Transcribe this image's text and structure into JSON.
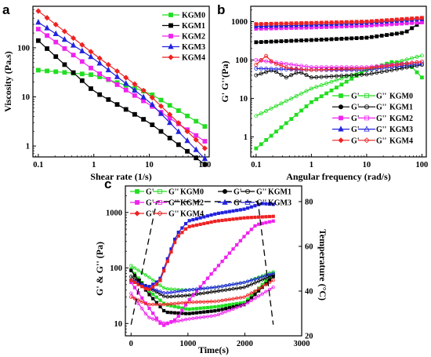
{
  "chart_data": [
    {
      "panel": "a",
      "type": "line",
      "xlabel": "Shear rate (1/s)",
      "ylabel": "Viscosity (Pa.s)",
      "xscale": "log",
      "yscale": "log",
      "xlim": [
        0.08,
        120
      ],
      "ylim": [
        0.6,
        700
      ],
      "xticks": [
        0.1,
        1,
        10,
        100
      ],
      "xtick_labels": [
        "0.1",
        "1",
        "10",
        "100"
      ],
      "yticks": [
        1,
        10,
        100
      ],
      "ytick_labels": [
        "1",
        "10",
        "100"
      ],
      "legend_position": "top-right",
      "series": [
        {
          "name": "KGM0",
          "color": "#22dd22",
          "marker": "square",
          "x": [
            0.1,
            1,
            10,
            100
          ],
          "y": [
            35,
            28,
            12,
            2.5
          ]
        },
        {
          "name": "KGM1",
          "color": "#000000",
          "marker": "square",
          "x": [
            0.1,
            1,
            10,
            100
          ],
          "y": [
            140,
            13,
            3,
            0.42
          ]
        },
        {
          "name": "KGM2",
          "color": "#ee22ee",
          "marker": "square",
          "x": [
            0.1,
            1,
            10,
            100
          ],
          "y": [
            240,
            35,
            7,
            1.25
          ]
        },
        {
          "name": "KGM3",
          "color": "#2222dd",
          "marker": "triangle",
          "x": [
            0.1,
            1,
            10,
            100
          ],
          "y": [
            330,
            60,
            8,
            0.55
          ]
        },
        {
          "name": "KGM4",
          "color": "#ee2222",
          "marker": "diamond",
          "x": [
            0.1,
            1,
            10,
            100
          ],
          "y": [
            560,
            75,
            11,
            0.9
          ]
        }
      ]
    },
    {
      "panel": "b",
      "type": "line",
      "xlabel": "Angular frequency (rad/s)",
      "ylabel": "G' G''(Pa)",
      "xscale": "log",
      "yscale": "log",
      "xlim": [
        0.08,
        120
      ],
      "ylim": [
        0.3,
        2500
      ],
      "xticks": [
        0.1,
        1,
        10,
        100
      ],
      "xtick_labels": [
        "0.1",
        "1",
        "10",
        "100"
      ],
      "yticks": [
        1,
        10,
        100,
        1000
      ],
      "ytick_labels": [
        "1",
        "10",
        "100",
        "1000"
      ],
      "legend_position": "bottom-right",
      "legend": [
        {
          "gp": "G'",
          "gpp": "G''",
          "sample": "KGM0"
        },
        {
          "gp": "G'",
          "gpp": "G''",
          "sample": "KGM1"
        },
        {
          "gp": "G'",
          "gpp": "G''",
          "sample": "KGM2"
        },
        {
          "gp": "G'",
          "gpp": "G''",
          "sample": "KGM3"
        },
        {
          "gp": "G'",
          "gpp": "G''",
          "sample": "KGM4"
        }
      ],
      "series": [
        {
          "name": "G' KGM0",
          "color": "#22dd22",
          "filled": true,
          "x": [
            0.1,
            1,
            10,
            30,
            60,
            100
          ],
          "y": [
            0.5,
            8,
            55,
            90,
            75,
            35
          ]
        },
        {
          "name": "G'' KGM0",
          "color": "#22dd22",
          "filled": false,
          "x": [
            0.1,
            1,
            10,
            100
          ],
          "y": [
            3.5,
            18,
            55,
            130
          ]
        },
        {
          "name": "G' KGM1",
          "color": "#000000",
          "filled": true,
          "x": [
            0.1,
            1,
            10,
            50,
            100
          ],
          "y": [
            290,
            330,
            380,
            520,
            1000
          ]
        },
        {
          "name": "G'' KGM1",
          "color": "#000000",
          "filled": false,
          "x": [
            0.1,
            0.2,
            0.35,
            0.6,
            1,
            10,
            100
          ],
          "y": [
            40,
            55,
            35,
            50,
            35,
            42,
            75
          ]
        },
        {
          "name": "G' KGM2",
          "color": "#ee22ee",
          "filled": true,
          "x": [
            0.1,
            1,
            10,
            100
          ],
          "y": [
            650,
            700,
            780,
            950
          ]
        },
        {
          "name": "G'' KGM2",
          "color": "#ee22ee",
          "filled": false,
          "x": [
            0.1,
            1,
            10,
            100
          ],
          "y": [
            100,
            65,
            65,
            90
          ]
        },
        {
          "name": "G' KGM3",
          "color": "#2222dd",
          "filled": true,
          "x": [
            0.1,
            1,
            10,
            100
          ],
          "y": [
            750,
            820,
            920,
            1150
          ]
        },
        {
          "name": "G'' KGM3",
          "color": "#2222dd",
          "filled": false,
          "x": [
            0.1,
            1,
            10,
            100
          ],
          "y": [
            60,
            55,
            55,
            80
          ]
        },
        {
          "name": "G' KGM4",
          "color": "#ee2222",
          "filled": true,
          "x": [
            0.1,
            1,
            10,
            100
          ],
          "y": [
            860,
            920,
            1000,
            1250
          ]
        },
        {
          "name": "G'' KGM4",
          "color": "#ee2222",
          "filled": false,
          "x": [
            0.1,
            0.15,
            0.2,
            0.4,
            1,
            10,
            100
          ],
          "y": [
            75,
            130,
            85,
            60,
            55,
            60,
            90
          ]
        }
      ]
    },
    {
      "panel": "c",
      "type": "line",
      "xlabel": "Time(s)",
      "ylabel": "G' & G'' (Pa)",
      "y2label": "Temperature (°C)",
      "xscale": "linear",
      "yscale": "log",
      "xlim": [
        -100,
        3000
      ],
      "ylim": [
        6,
        3000
      ],
      "y2lim": [
        20,
        87
      ],
      "xticks": [
        0,
        1000,
        2000,
        3000
      ],
      "xtick_labels": [
        "0",
        "1000",
        "2000",
        "3000"
      ],
      "yticks": [
        10,
        100,
        1000
      ],
      "ytick_labels": [
        "10",
        "100",
        "1000"
      ],
      "y2ticks": [
        20,
        40,
        60,
        80
      ],
      "y2tick_labels": [
        "20",
        "40",
        "60",
        "80"
      ],
      "legend_position": "top",
      "legend": [
        {
          "gp": "G'",
          "gpp": "G''",
          "sample": "KGM0"
        },
        {
          "gp": "G'",
          "gpp": "G''",
          "sample": "KGM1"
        },
        {
          "gp": "G'",
          "gpp": "G''",
          "sample": "KGM2"
        },
        {
          "gp": "G'",
          "gpp": "G''",
          "sample": "KGM3"
        },
        {
          "gp": "G'",
          "gpp": "G''",
          "sample": "KGM4"
        }
      ],
      "series": [
        {
          "name": "G' KGM0",
          "color": "#22dd22",
          "filled": true,
          "x": [
            0,
            300,
            600,
            1000,
            1500,
            2000,
            2500
          ],
          "y": [
            95,
            40,
            22,
            18,
            20,
            24,
            80
          ]
        },
        {
          "name": "G'' KGM0",
          "color": "#22dd22",
          "filled": false,
          "x": [
            0,
            300,
            600,
            1000,
            1500,
            2000,
            2500
          ],
          "y": [
            110,
            70,
            42,
            40,
            45,
            55,
            85
          ]
        },
        {
          "name": "G' KGM1",
          "color": "#000000",
          "filled": true,
          "x": [
            0,
            300,
            600,
            1000,
            1500,
            2000,
            2500
          ],
          "y": [
            90,
            35,
            16,
            15,
            17,
            22,
            70
          ]
        },
        {
          "name": "G'' KGM1",
          "color": "#000000",
          "filled": false,
          "x": [
            0,
            300,
            600,
            1000,
            1500,
            2000,
            2500
          ],
          "y": [
            70,
            45,
            30,
            32,
            38,
            45,
            75
          ]
        },
        {
          "name": "G' KGM2",
          "color": "#ee22ee",
          "filled": true,
          "x": [
            0,
            300,
            550,
            800,
            1000,
            1500,
            2000,
            2200,
            2500
          ],
          "y": [
            55,
            20,
            9,
            12,
            25,
            100,
            380,
            600,
            700
          ]
        },
        {
          "name": "G'' KGM2",
          "color": "#ee22ee",
          "filled": false,
          "x": [
            0,
            300,
            600,
            1000,
            1500,
            2000,
            2500
          ],
          "y": [
            35,
            13,
            10,
            12,
            14,
            22,
            45
          ]
        },
        {
          "name": "G' KGM3",
          "color": "#2222dd",
          "filled": true,
          "x": [
            0,
            300,
            500,
            800,
            1000,
            1500,
            2000,
            2300,
            2500
          ],
          "y": [
            60,
            45,
            60,
            400,
            700,
            950,
            1150,
            1450,
            1400
          ]
        },
        {
          "name": "G'' KGM3",
          "color": "#2222dd",
          "filled": false,
          "x": [
            0,
            300,
            600,
            1000,
            1500,
            2000,
            2500
          ],
          "y": [
            60,
            45,
            35,
            40,
            45,
            55,
            80
          ]
        },
        {
          "name": "G' KGM4",
          "color": "#ee2222",
          "filled": true,
          "x": [
            0,
            300,
            500,
            800,
            1000,
            1500,
            2000,
            2500
          ],
          "y": [
            60,
            40,
            55,
            350,
            550,
            700,
            800,
            850
          ]
        },
        {
          "name": "G'' KGM4",
          "color": "#ee2222",
          "filled": false,
          "x": [
            0,
            300,
            600,
            1000,
            1500,
            2000,
            2500
          ],
          "y": [
            30,
            22,
            22,
            24,
            25,
            30,
            60
          ]
        },
        {
          "name": "Temperature",
          "color": "#000000",
          "dashed": true,
          "axis": "y2",
          "x": [
            0,
            450,
            2230,
            2500
          ],
          "y": [
            25,
            80,
            80,
            25
          ]
        }
      ]
    }
  ]
}
